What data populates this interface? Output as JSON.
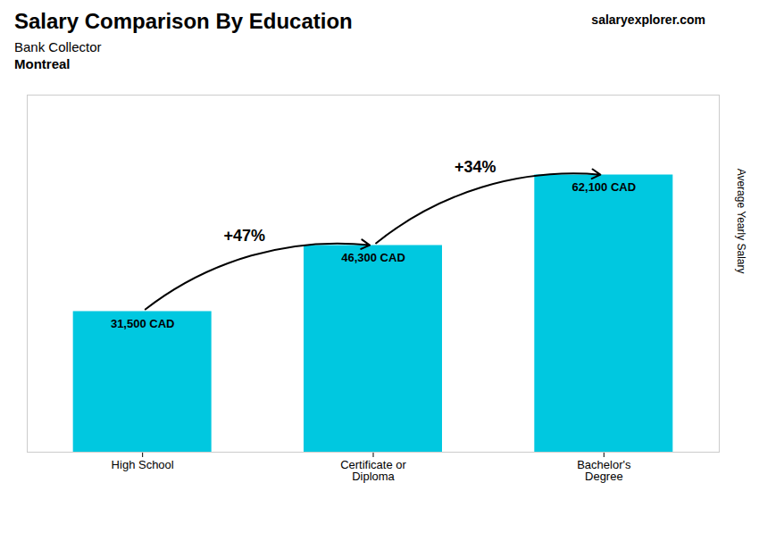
{
  "chart_data": {
    "type": "bar",
    "title": "Salary Comparison By Education",
    "subtitle": [
      "Bank Collector",
      "Montreal"
    ],
    "watermark": [
      "salary",
      "explorer.com"
    ],
    "ylabel": "Average Yearly Salary",
    "categories": [
      "High School",
      "Certificate or\nDiploma",
      "Bachelor's\nDegree"
    ],
    "values": [
      31500,
      46300,
      62100
    ],
    "value_labels": [
      "31,500 CAD",
      "46,300 CAD",
      "62,100 CAD"
    ],
    "data_labels": true,
    "annotations": [
      "+47%",
      "+34%"
    ],
    "color": "#00c8e0",
    "ylim": [
      0,
      80000
    ],
    "tick_labels": "x",
    "grid": false
  }
}
